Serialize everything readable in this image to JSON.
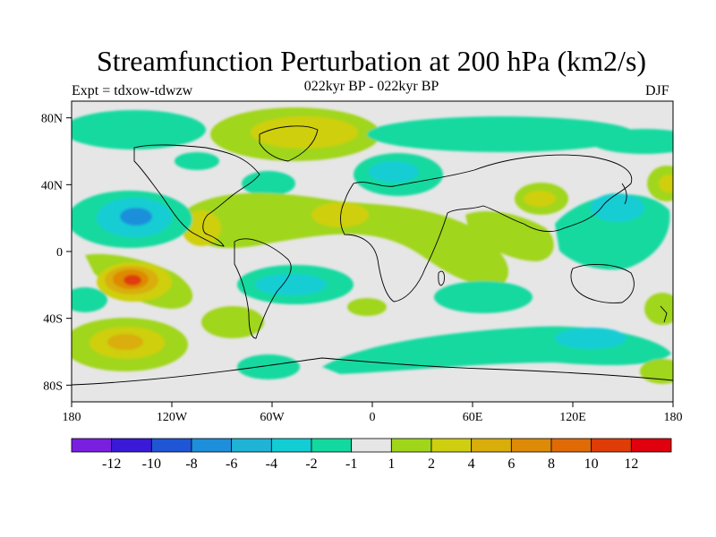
{
  "title": "Streamfunction Perturbation at 200 hPa (km2/s)",
  "subtitle": "022kyr BP - 022kyr BP",
  "experiment_label": "Expt = tdxow-tdwzw",
  "season": "DJF",
  "map": {
    "projection": "cylindrical equidistant",
    "lon_range": [
      -180,
      180
    ],
    "lat_range": [
      -90,
      90
    ],
    "lat_ticks": [
      "80N",
      "40N",
      "0",
      "40S",
      "80S"
    ],
    "lon_ticks": [
      "180",
      "120W",
      "60W",
      "0",
      "60E",
      "120E",
      "180"
    ],
    "background_color": "#e6e6e6",
    "coastline_color": "#000000"
  },
  "colorbar": {
    "labels": [
      "-12",
      "-10",
      "-8",
      "-6",
      "-4",
      "-2",
      "-1",
      "1",
      "2",
      "4",
      "6",
      "8",
      "10",
      "12"
    ],
    "colors": [
      "#7a1fe0",
      "#3a1ad8",
      "#1f56d6",
      "#1e8fda",
      "#1fb4d6",
      "#12cdd4",
      "#12d9a0",
      "#e6e6e6",
      "#a0d61a",
      "#cfcf10",
      "#d9ae0a",
      "#dd8a06",
      "#e06a06",
      "#e03c08",
      "#e0000e"
    ]
  }
}
